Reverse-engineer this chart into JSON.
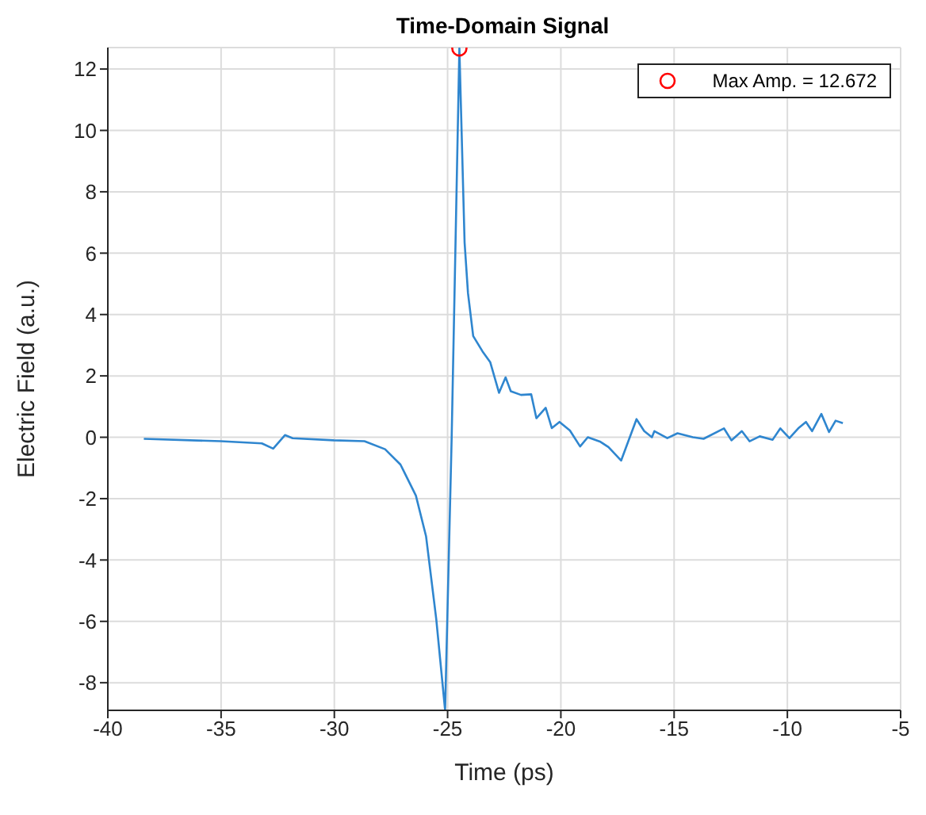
{
  "chart_data": {
    "type": "line",
    "title": "Time-Domain Signal",
    "xlabel": "Time (ps)",
    "ylabel": "Electric Field (a.u.)",
    "xlim": [
      -40,
      -5
    ],
    "xticks": [
      -40,
      -35,
      -30,
      -25,
      -20,
      -15,
      -10,
      -5
    ],
    "ylim": [
      -8.9,
      12.7
    ],
    "yticks": [
      -8,
      -6,
      -4,
      -2,
      0,
      2,
      4,
      6,
      8,
      10,
      12
    ],
    "grid": true,
    "legend": "top right",
    "series": [
      {
        "color": "#2f86cf",
        "marker": "none",
        "x": [
          -38.41,
          -35.01,
          -33.2,
          -32.7,
          -32.18,
          -31.84,
          -30.03,
          -28.67,
          -27.76,
          -27.08,
          -26.4,
          -25.95,
          -25.5,
          -25.11,
          -24.82,
          -24.48,
          -24.25,
          -24.1,
          -23.87,
          -23.46,
          -23.12,
          -22.73,
          -22.44,
          -22.21,
          -21.76,
          -21.31,
          -21.08,
          -20.67,
          -20.4,
          -20.06,
          -19.6,
          -19.15,
          -18.81,
          -18.25,
          -17.9,
          -17.34,
          -16.66,
          -16.32,
          -15.98,
          -15.87,
          -15.3,
          -14.85,
          -14.17,
          -13.7,
          -12.8,
          -12.47,
          -12.01,
          -11.67,
          -11.22,
          -10.65,
          -10.31,
          -9.91,
          -9.52,
          -9.18,
          -8.91,
          -8.5,
          -8.16,
          -7.87,
          -7.55
        ],
        "values": [
          -0.05,
          -0.13,
          -0.2,
          -0.37,
          0.07,
          -0.03,
          -0.1,
          -0.13,
          -0.39,
          -0.89,
          -1.9,
          -3.23,
          -5.93,
          -8.9,
          0,
          12.672,
          6.35,
          4.7,
          3.3,
          2.8,
          2.45,
          1.45,
          1.95,
          1.5,
          1.38,
          1.4,
          0.62,
          0.96,
          0.3,
          0.5,
          0.22,
          -0.3,
          0.0,
          -0.15,
          -0.32,
          -0.76,
          0.59,
          0.2,
          0.0,
          0.2,
          -0.03,
          0.13,
          0.0,
          -0.05,
          0.29,
          -0.1,
          0.2,
          -0.13,
          0.03,
          -0.08,
          0.29,
          -0.03,
          0.29,
          0.5,
          0.2,
          0.76,
          0.17,
          0.54,
          0.46
        ]
      },
      {
        "type": "scatter",
        "name": "Max Amp. = 12.672",
        "color": "#ff0000",
        "marker": "circle",
        "x": [
          -24.48
        ],
        "values": [
          12.672
        ]
      }
    ]
  }
}
